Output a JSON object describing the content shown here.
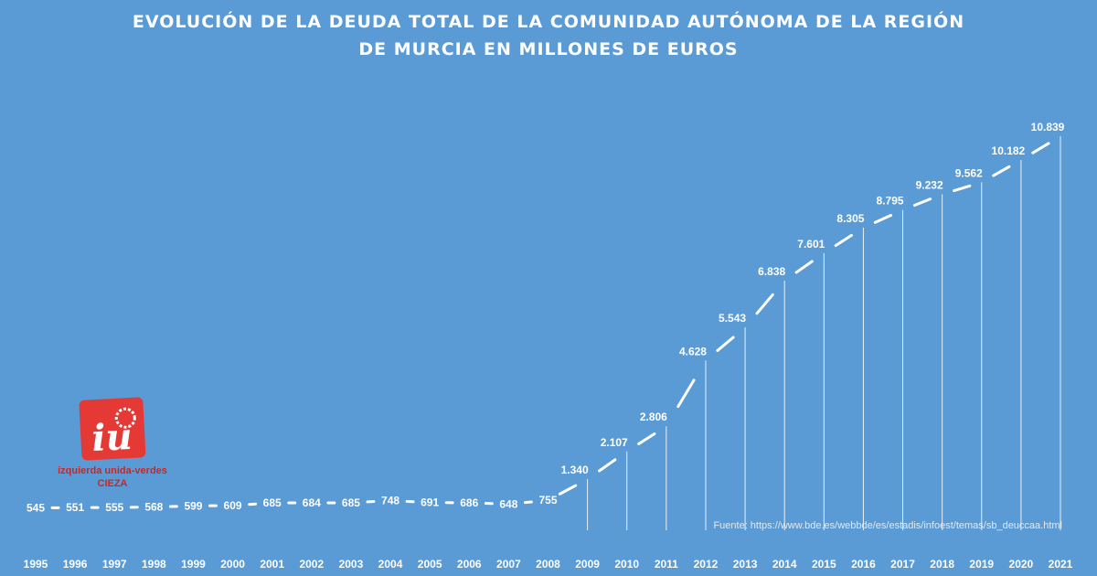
{
  "chart_data": {
    "type": "line",
    "title_line1": "EVOLUCIÓN DE LA DEUDA TOTAL DE LA COMUNIDAD AUTÓNOMA DE LA REGIÓN",
    "title_line2": "DE MURCIA EN MILLONES DE EUROS",
    "categories": [
      "1995",
      "1996",
      "1997",
      "1998",
      "1999",
      "2000",
      "2001",
      "2002",
      "2003",
      "2004",
      "2005",
      "2006",
      "2007",
      "2008",
      "2009",
      "2010",
      "2011",
      "2012",
      "2013",
      "2014",
      "2015",
      "2016",
      "2017",
      "2018",
      "2019",
      "2020",
      "2021"
    ],
    "values": [
      545,
      551,
      555,
      568,
      599,
      609,
      685,
      684,
      685,
      748,
      691,
      686,
      648,
      755,
      1340,
      2107,
      2806,
      4628,
      5543,
      6838,
      7601,
      8305,
      8795,
      9232,
      9562,
      10182,
      10839
    ],
    "labels": [
      "545",
      "551",
      "555",
      "568",
      "599",
      "609",
      "685",
      "684",
      "685",
      "748",
      "691",
      "686",
      "648",
      "755",
      "1.340",
      "2.107",
      "2.806",
      "4.628",
      "5.543",
      "6.838",
      "7.601",
      "8.305",
      "8.795",
      "9.232",
      "9.562",
      "10.182",
      "10.839"
    ],
    "ylim": [
      0,
      11000
    ],
    "grid": false,
    "legend": "none",
    "line_style": "dashed",
    "colors": {
      "background": "#5b9bd5",
      "line": "#ffffff",
      "text": "#ffffff"
    }
  },
  "source_note": "Fuente: https://www.bde.es/webbde/es/estadis/infoest/temas/sb_deuccaa.html",
  "logo": {
    "text_line1": "izquierda unida-verdes",
    "text_line2": "CIEZA",
    "mark": "iu",
    "color": "#e53935"
  }
}
